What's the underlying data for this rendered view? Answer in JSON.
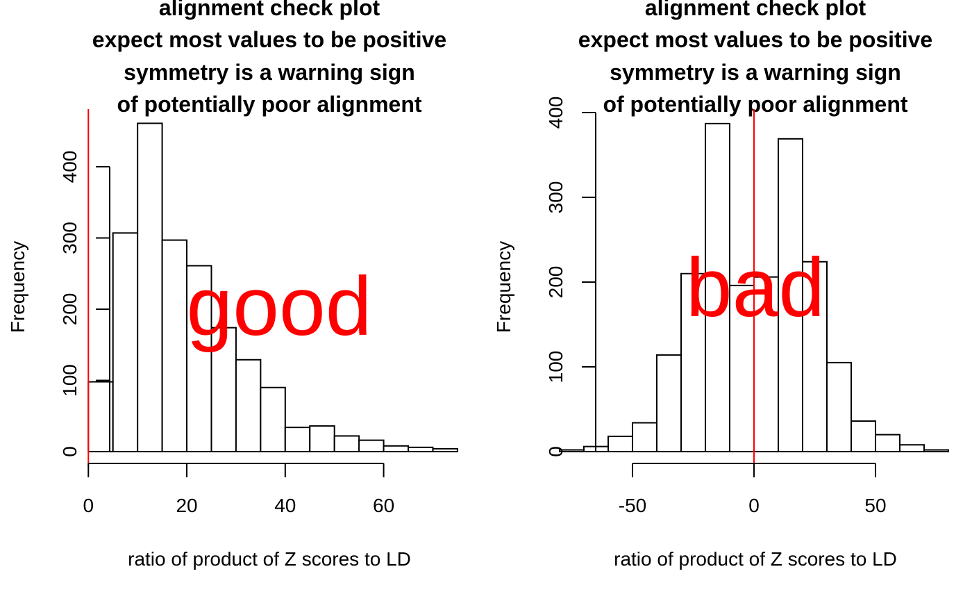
{
  "chart_data": [
    {
      "type": "bar",
      "title_lines": [
        "alignment check plot",
        "expect most values to be positive",
        "symmetry is a warning sign",
        "of potentially poor alignment"
      ],
      "xlabel": "ratio of product of Z scores to LD",
      "ylabel": "Frequency",
      "xlim": [
        -3,
        76
      ],
      "ylim": [
        0,
        480
      ],
      "x_ticks": [
        0,
        20,
        40,
        60
      ],
      "y_ticks": [
        0,
        100,
        200,
        300,
        400
      ],
      "bin_width": 5,
      "bin_starts": [
        0,
        5,
        10,
        15,
        20,
        25,
        30,
        35,
        40,
        45,
        50,
        55,
        60,
        65,
        70
      ],
      "values": [
        98,
        307,
        461,
        297,
        261,
        174,
        129,
        90,
        34,
        36,
        22,
        16,
        8,
        6,
        4
      ],
      "reference_line_x": 0,
      "reference_line_color": "#ff0000",
      "annotation": {
        "text": "good",
        "color": "#ff0000"
      }
    },
    {
      "type": "bar",
      "title_lines": [
        "alignment check plot",
        "expect most values to be positive",
        "symmetry is a warning sign",
        "of potentially poor alignment"
      ],
      "xlabel": "ratio of product of Z scores to LD",
      "ylabel": "Frequency",
      "xlim": [
        -80,
        80
      ],
      "ylim": [
        0,
        400
      ],
      "x_ticks": [
        -50,
        0,
        50
      ],
      "y_ticks": [
        0,
        100,
        200,
        300,
        400
      ],
      "bin_width": 10,
      "bin_starts": [
        -80,
        -70,
        -60,
        -50,
        -40,
        -30,
        -20,
        -10,
        0,
        10,
        20,
        30,
        40,
        50,
        60,
        70
      ],
      "values": [
        2,
        6,
        18,
        34,
        114,
        210,
        387,
        196,
        206,
        369,
        224,
        105,
        36,
        20,
        8,
        2
      ],
      "reference_line_x": 0,
      "reference_line_color": "#ff0000",
      "annotation": {
        "text": "bad",
        "color": "#ff0000"
      }
    }
  ]
}
